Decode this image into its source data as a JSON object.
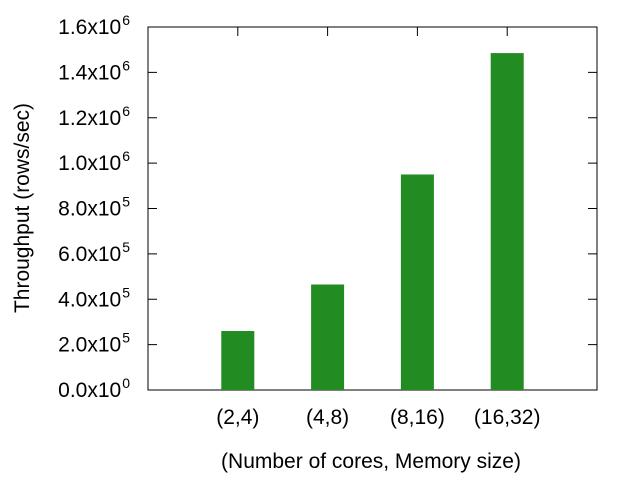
{
  "chart_data": {
    "type": "bar",
    "categories": [
      "(2,4)",
      "(4,8)",
      "(8,16)",
      "(16,32)"
    ],
    "values": [
      260000,
      465000,
      950000,
      1485000
    ],
    "xlabel": "(Number of cores, Memory size)",
    "ylabel": "Throughput (rows/sec)",
    "ylim": [
      0,
      1600000
    ],
    "yticks": [
      {
        "value": 0,
        "mantissa": "0.0x10",
        "exponent": "0"
      },
      {
        "value": 200000,
        "mantissa": "2.0x10",
        "exponent": "5"
      },
      {
        "value": 400000,
        "mantissa": "4.0x10",
        "exponent": "5"
      },
      {
        "value": 600000,
        "mantissa": "6.0x10",
        "exponent": "5"
      },
      {
        "value": 800000,
        "mantissa": "8.0x10",
        "exponent": "5"
      },
      {
        "value": 1000000,
        "mantissa": "1.0x10",
        "exponent": "6"
      },
      {
        "value": 1200000,
        "mantissa": "1.2x10",
        "exponent": "6"
      },
      {
        "value": 1400000,
        "mantissa": "1.4x10",
        "exponent": "6"
      },
      {
        "value": 1600000,
        "mantissa": "1.6x10",
        "exponent": "6"
      }
    ],
    "bar_color": "#228b22",
    "grid": false,
    "legend": "none"
  }
}
